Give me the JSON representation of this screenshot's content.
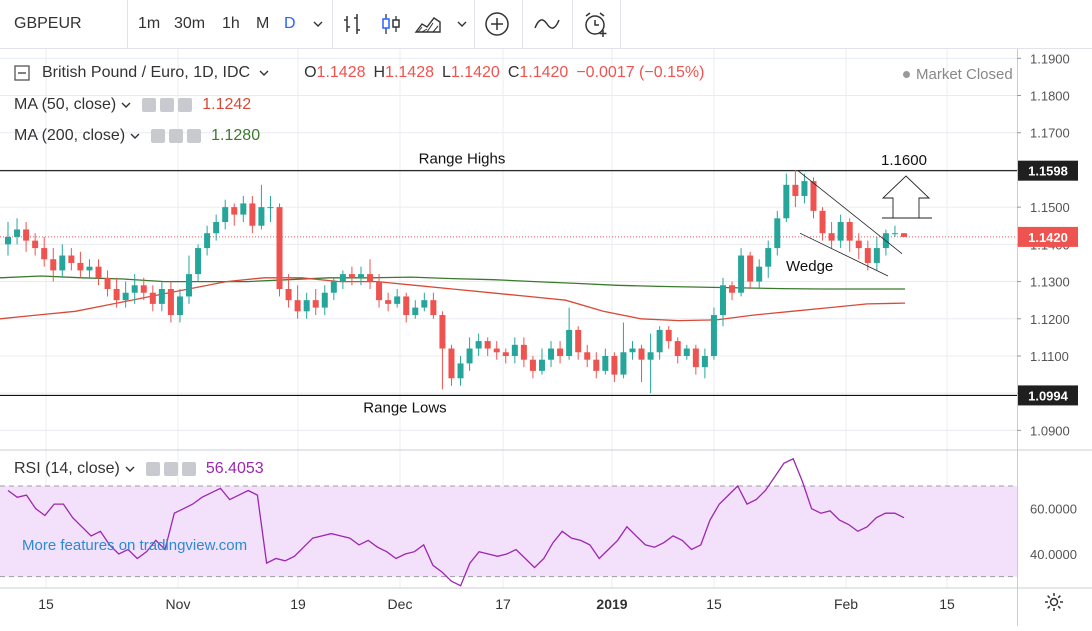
{
  "toolbar": {
    "symbol": "GBPEUR",
    "intervals": [
      "1m",
      "30m",
      "1h",
      "M",
      "D"
    ],
    "active_interval": "D"
  },
  "header": {
    "instrument": "British Pound / Euro, 1D, IDC",
    "open_label": "O",
    "open": "1.1428",
    "high_label": "H",
    "high": "1.1428",
    "low_label": "L",
    "low": "1.1420",
    "close_label": "C",
    "close": "1.1420",
    "change": "−0.0017 (−0.15%)",
    "market_status": "Market Closed"
  },
  "indicators": {
    "ma50": {
      "label": "MA (50, close)",
      "value": "1.1242",
      "color": "#d84a38"
    },
    "ma200": {
      "label": "MA (200, close)",
      "value": "1.1280",
      "color": "#3b7a2c"
    },
    "rsi": {
      "label": "RSI (14, close)",
      "value": "56.4053",
      "color": "#9c27b0"
    }
  },
  "watermark": "More features on tradingview.com",
  "colors": {
    "up": "#26a69a",
    "down": "#ef5350",
    "rsi_band": "#f3e0fb",
    "grid": "#e9ecf2"
  },
  "chart_data": {
    "type": "candlestick",
    "title": "British Pound / Euro, 1D, IDC",
    "ylim": [
      1.085,
      1.1925
    ],
    "y_ticks": [
      "1.1900",
      "1.1800",
      "1.1700",
      "1.1600",
      "1.1500",
      "1.1400",
      "1.1300",
      "1.1200",
      "1.1100",
      "1.1000",
      "1.0900"
    ],
    "x_ticks": [
      "15",
      "Nov",
      "19",
      "Dec",
      "17",
      "2019",
      "15",
      "Feb",
      "15"
    ],
    "price_badges": [
      {
        "value": 1.1598,
        "label": "1.1598",
        "bg": "#1f1f1f"
      },
      {
        "value": 1.142,
        "label": "1.1420",
        "bg": "#ef5350"
      },
      {
        "value": 1.0994,
        "label": "1.0994",
        "bg": "#1f1f1f"
      }
    ],
    "range_high": {
      "value": 1.1598,
      "label": "Range Highs"
    },
    "range_low": {
      "value": 1.0994,
      "label": "Range Lows"
    },
    "target": {
      "value": 1.16,
      "label": "1.1600"
    },
    "pattern_label": "Wedge",
    "candles": [
      [
        1.14,
        1.142,
        1.146,
        1.137
      ],
      [
        1.142,
        1.144,
        1.147,
        1.14
      ],
      [
        1.144,
        1.141,
        1.146,
        1.138
      ],
      [
        1.141,
        1.139,
        1.143,
        1.137
      ],
      [
        1.139,
        1.136,
        1.142,
        1.134
      ],
      [
        1.136,
        1.133,
        1.139,
        1.13
      ],
      [
        1.133,
        1.137,
        1.14,
        1.131
      ],
      [
        1.137,
        1.135,
        1.139,
        1.133
      ],
      [
        1.135,
        1.133,
        1.138,
        1.131
      ],
      [
        1.133,
        1.134,
        1.136,
        1.131
      ],
      [
        1.134,
        1.131,
        1.136,
        1.129
      ],
      [
        1.131,
        1.128,
        1.133,
        1.126
      ],
      [
        1.128,
        1.125,
        1.131,
        1.123
      ],
      [
        1.125,
        1.127,
        1.13,
        1.123
      ],
      [
        1.127,
        1.129,
        1.132,
        1.124
      ],
      [
        1.129,
        1.127,
        1.131,
        1.125
      ],
      [
        1.127,
        1.124,
        1.129,
        1.122
      ],
      [
        1.124,
        1.128,
        1.13,
        1.122
      ],
      [
        1.128,
        1.121,
        1.13,
        1.119
      ],
      [
        1.121,
        1.126,
        1.128,
        1.119
      ],
      [
        1.126,
        1.132,
        1.137,
        1.124
      ],
      [
        1.132,
        1.139,
        1.14,
        1.13
      ],
      [
        1.139,
        1.143,
        1.145,
        1.137
      ],
      [
        1.143,
        1.146,
        1.148,
        1.141
      ],
      [
        1.146,
        1.15,
        1.152,
        1.144
      ],
      [
        1.15,
        1.148,
        1.151,
        1.145
      ],
      [
        1.148,
        1.151,
        1.153,
        1.146
      ],
      [
        1.151,
        1.145,
        1.153,
        1.143
      ],
      [
        1.145,
        1.15,
        1.156,
        1.144
      ],
      [
        1.15,
        1.15,
        1.153,
        1.146
      ],
      [
        1.15,
        1.128,
        1.151,
        1.126
      ],
      [
        1.128,
        1.125,
        1.132,
        1.123
      ],
      [
        1.125,
        1.122,
        1.129,
        1.12
      ],
      [
        1.122,
        1.125,
        1.127,
        1.12
      ],
      [
        1.125,
        1.123,
        1.128,
        1.121
      ],
      [
        1.123,
        1.127,
        1.129,
        1.121
      ],
      [
        1.127,
        1.13,
        1.131,
        1.125
      ],
      [
        1.13,
        1.132,
        1.133,
        1.128
      ],
      [
        1.132,
        1.131,
        1.134,
        1.129
      ],
      [
        1.131,
        1.132,
        1.134,
        1.129
      ],
      [
        1.132,
        1.13,
        1.136,
        1.128
      ],
      [
        1.13,
        1.125,
        1.132,
        1.123
      ],
      [
        1.125,
        1.124,
        1.127,
        1.122
      ],
      [
        1.124,
        1.126,
        1.128,
        1.123
      ],
      [
        1.126,
        1.121,
        1.127,
        1.119
      ],
      [
        1.121,
        1.123,
        1.125,
        1.12
      ],
      [
        1.123,
        1.125,
        1.127,
        1.122
      ],
      [
        1.125,
        1.121,
        1.127,
        1.12
      ],
      [
        1.121,
        1.112,
        1.122,
        1.101
      ],
      [
        1.112,
        1.104,
        1.113,
        1.102
      ],
      [
        1.104,
        1.108,
        1.11,
        1.102
      ],
      [
        1.108,
        1.112,
        1.115,
        1.106
      ],
      [
        1.112,
        1.114,
        1.116,
        1.11
      ],
      [
        1.114,
        1.112,
        1.115,
        1.11
      ],
      [
        1.112,
        1.111,
        1.114,
        1.109
      ],
      [
        1.111,
        1.11,
        1.112,
        1.108
      ],
      [
        1.11,
        1.113,
        1.115,
        1.108
      ],
      [
        1.113,
        1.109,
        1.115,
        1.107
      ],
      [
        1.109,
        1.106,
        1.11,
        1.104
      ],
      [
        1.106,
        1.109,
        1.112,
        1.105
      ],
      [
        1.109,
        1.112,
        1.114,
        1.107
      ],
      [
        1.112,
        1.11,
        1.114,
        1.108
      ],
      [
        1.11,
        1.117,
        1.123,
        1.109
      ],
      [
        1.117,
        1.111,
        1.118,
        1.109
      ],
      [
        1.111,
        1.109,
        1.113,
        1.107
      ],
      [
        1.109,
        1.106,
        1.111,
        1.104
      ],
      [
        1.106,
        1.11,
        1.112,
        1.105
      ],
      [
        1.11,
        1.105,
        1.111,
        1.103
      ],
      [
        1.105,
        1.111,
        1.119,
        1.104
      ],
      [
        1.111,
        1.112,
        1.114,
        1.109
      ],
      [
        1.112,
        1.109,
        1.113,
        1.103
      ],
      [
        1.109,
        1.111,
        1.116,
        1.1
      ],
      [
        1.111,
        1.117,
        1.118,
        1.109
      ],
      [
        1.117,
        1.114,
        1.118,
        1.112
      ],
      [
        1.114,
        1.11,
        1.115,
        1.108
      ],
      [
        1.11,
        1.112,
        1.113,
        1.109
      ],
      [
        1.112,
        1.107,
        1.113,
        1.105
      ],
      [
        1.107,
        1.11,
        1.112,
        1.104
      ],
      [
        1.11,
        1.121,
        1.123,
        1.109
      ],
      [
        1.121,
        1.129,
        1.131,
        1.118
      ],
      [
        1.129,
        1.127,
        1.13,
        1.125
      ],
      [
        1.127,
        1.137,
        1.139,
        1.126
      ],
      [
        1.137,
        1.13,
        1.138,
        1.128
      ],
      [
        1.13,
        1.134,
        1.136,
        1.128
      ],
      [
        1.134,
        1.139,
        1.141,
        1.131
      ],
      [
        1.139,
        1.147,
        1.149,
        1.137
      ],
      [
        1.147,
        1.156,
        1.159,
        1.146
      ],
      [
        1.156,
        1.153,
        1.16,
        1.15
      ],
      [
        1.153,
        1.157,
        1.159,
        1.151
      ],
      [
        1.157,
        1.149,
        1.158,
        1.147
      ],
      [
        1.149,
        1.143,
        1.15,
        1.141
      ],
      [
        1.143,
        1.141,
        1.146,
        1.139
      ],
      [
        1.141,
        1.146,
        1.148,
        1.139
      ],
      [
        1.146,
        1.141,
        1.147,
        1.138
      ],
      [
        1.141,
        1.139,
        1.143,
        1.136
      ],
      [
        1.139,
        1.135,
        1.141,
        1.133
      ],
      [
        1.135,
        1.139,
        1.142,
        1.133
      ],
      [
        1.139,
        1.143,
        1.144,
        1.137
      ],
      [
        1.143,
        1.143,
        1.145,
        1.142
      ],
      [
        1.143,
        1.142,
        1.143,
        1.142
      ]
    ],
    "ma50": [
      1.12,
      1.121,
      1.122,
      1.124,
      1.126,
      1.128,
      1.13,
      1.131,
      1.131,
      1.13,
      1.13,
      1.129,
      1.128,
      1.127,
      1.126,
      1.125,
      1.122,
      1.12,
      1.1195,
      1.1197,
      1.121,
      1.122,
      1.123,
      1.124,
      1.1242
    ],
    "ma200": [
      1.131,
      1.1315,
      1.131,
      1.1307,
      1.13,
      1.13,
      1.13,
      1.1305,
      1.131,
      1.131,
      1.1312,
      1.1308,
      1.1305,
      1.13,
      1.1295,
      1.129,
      1.1287,
      1.1285,
      1.1283,
      1.1281,
      1.128,
      1.128,
      1.128
    ],
    "rsi": {
      "label": "RSI (14, close)",
      "ylim": [
        25,
        85
      ],
      "band": [
        30,
        70
      ],
      "y_ticks": [
        "60.0000",
        "40.0000"
      ],
      "values": [
        68,
        65,
        66,
        60,
        57,
        62,
        62,
        56,
        52,
        48,
        50,
        44,
        40,
        42,
        38,
        41,
        46,
        42,
        58,
        60,
        62,
        65,
        67,
        69,
        64,
        66,
        68,
        66,
        36,
        38,
        37,
        39,
        43,
        47,
        48,
        49,
        48,
        47,
        44,
        46,
        43,
        41,
        38,
        40,
        41,
        44,
        35,
        32,
        28,
        26,
        36,
        41,
        40,
        39,
        40,
        42,
        38,
        34,
        38,
        45,
        50,
        47,
        46,
        44,
        38,
        42,
        46,
        52,
        48,
        44,
        43,
        45,
        48,
        46,
        42,
        44,
        55,
        62,
        66,
        70,
        62,
        64,
        68,
        74,
        80,
        82,
        72,
        60,
        58,
        59,
        55,
        53,
        50,
        52,
        56,
        58,
        58,
        56
      ]
    }
  }
}
